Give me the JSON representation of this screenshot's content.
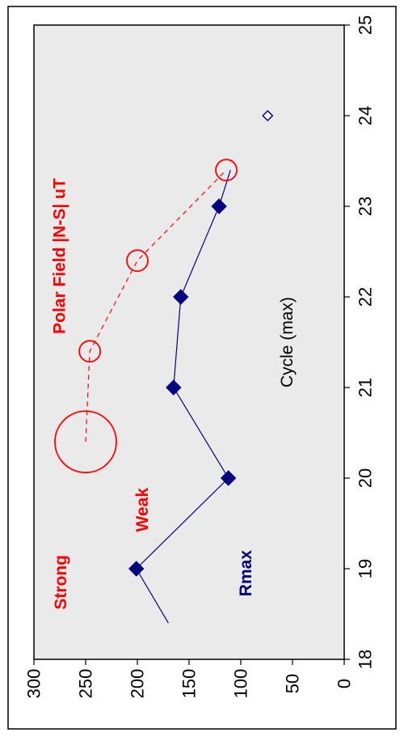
{
  "chart_data": {
    "type": "line",
    "orientation": "rotated-90-ccw",
    "xlabel": "Cycle (max)",
    "ylabel": "",
    "xlim": [
      18,
      25
    ],
    "ylim": [
      0,
      300
    ],
    "x_ticks": [
      "18",
      "19",
      "20",
      "21",
      "22",
      "23",
      "24",
      "25"
    ],
    "y_ticks": [
      "0",
      "50",
      "100",
      "150",
      "200",
      "250",
      "300"
    ],
    "plot_background": "#eaeaea",
    "grid": false,
    "series": [
      {
        "name": "Rmax",
        "color": "#000080",
        "marker": "filled-diamond",
        "line": "solid",
        "lead_in": {
          "x": 18.4,
          "y": 170
        },
        "x": [
          19,
          20,
          21,
          22,
          23
        ],
        "y": [
          201,
          112,
          165,
          158,
          121
        ],
        "lead_out": {
          "x": 23.4,
          "y": 110
        },
        "extra_points": [
          {
            "x": 24,
            "y": 74,
            "marker": "open-diamond"
          }
        ]
      },
      {
        "name": "Polar Field |N-S| uT",
        "color": "#ff0000",
        "marker": "open-circle",
        "line": "dashed",
        "x": [
          20.4,
          21.4,
          22.4,
          23.4
        ],
        "y": [
          250,
          246,
          200,
          114
        ],
        "marker_sizes": [
          "large",
          "small",
          "small",
          "small"
        ]
      }
    ],
    "annotations": [
      {
        "text": "Strong",
        "color": "#ff0000"
      },
      {
        "text": "Weak",
        "color": "#ff0000"
      },
      {
        "text": "Rmax",
        "color": "#000080"
      },
      {
        "text": "Polar Field |N-S| uT",
        "color": "#ff0000"
      }
    ]
  }
}
